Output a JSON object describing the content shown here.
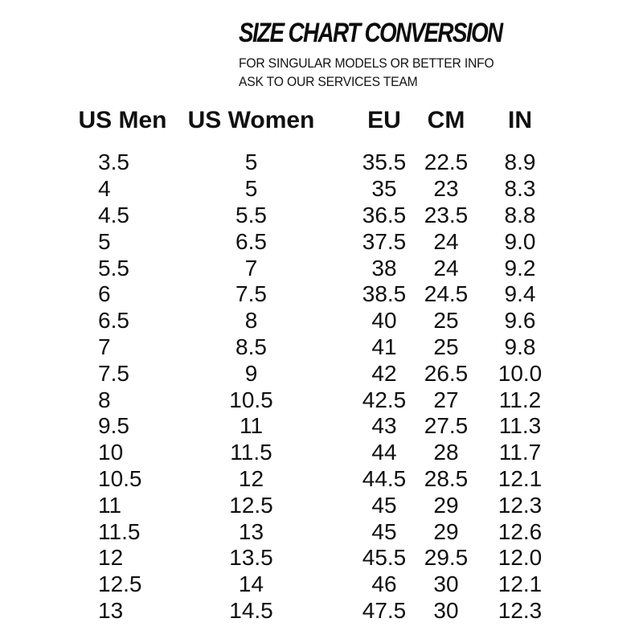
{
  "page": {
    "background_color": "#ffffff",
    "text_color": "#101010"
  },
  "header": {
    "title": "SIZE CHART CONVERSION",
    "subtitle_line1": "FOR SINGULAR MODELS OR BETTER INFO",
    "subtitle_line2": "ASK TO OUR SERVICES TEAM"
  },
  "table": {
    "headers": [
      "US Men",
      "US Women",
      "EU",
      "CM",
      "IN"
    ],
    "rows": [
      [
        "3.5",
        "5",
        "35.5",
        "22.5",
        "8.9"
      ],
      [
        "4",
        "5",
        "35",
        "23",
        "8.3"
      ],
      [
        "4.5",
        "5.5",
        "36.5",
        "23.5",
        "8.8"
      ],
      [
        "5",
        "6.5",
        "37.5",
        "24",
        "9.0"
      ],
      [
        "5.5",
        "7",
        "38",
        "24",
        "9.2"
      ],
      [
        "6",
        "7.5",
        "38.5",
        "24.5",
        "9.4"
      ],
      [
        "6.5",
        "8",
        "40",
        "25",
        "9.6"
      ],
      [
        "7",
        "8.5",
        "41",
        "25",
        "9.8"
      ],
      [
        "7.5",
        "9",
        "42",
        "26.5",
        "10.0"
      ],
      [
        "8",
        "10.5",
        "42.5",
        "27",
        "11.2"
      ],
      [
        "9.5",
        "11",
        "43",
        "27.5",
        "11.3"
      ],
      [
        "10",
        "11.5",
        "44",
        "28",
        "11.7"
      ],
      [
        "10.5",
        "12",
        "44.5",
        "28.5",
        "12.1"
      ],
      [
        "11",
        "12.5",
        "45",
        "29",
        "12.3"
      ],
      [
        "11.5",
        "13",
        "45",
        "29",
        "12.6"
      ],
      [
        "12",
        "13.5",
        "45.5",
        "29.5",
        "12.0"
      ],
      [
        "12.5",
        "14",
        "46",
        "30",
        "12.1"
      ],
      [
        "13",
        "14.5",
        "47.5",
        "30",
        "12.3"
      ]
    ]
  }
}
